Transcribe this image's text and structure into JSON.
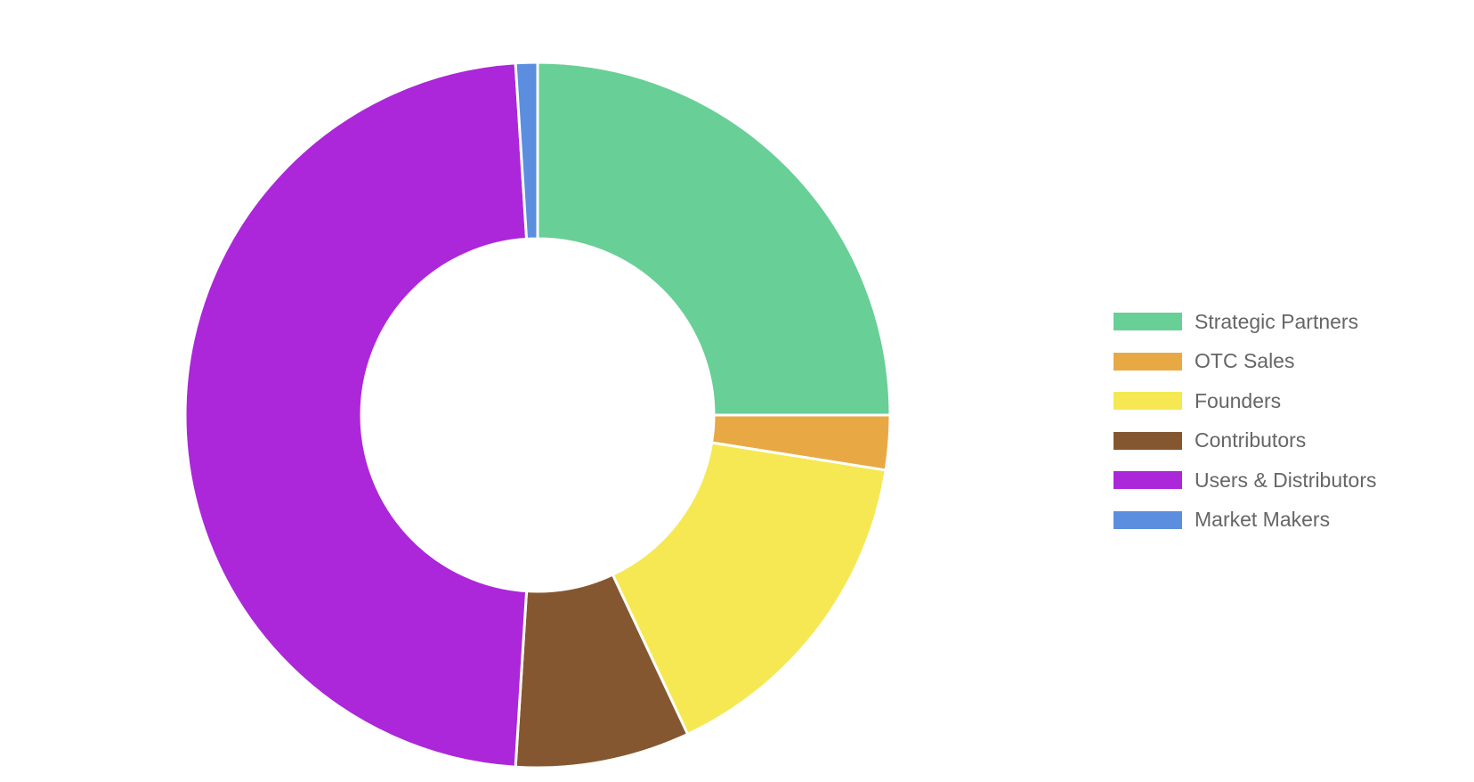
{
  "chart_data": {
    "type": "pie",
    "variant": "doughnut",
    "title": "",
    "categories": [
      "Strategic Partners",
      "OTC Sales",
      "Founders",
      "Contributors",
      "Users & Distributors",
      "Market Makers"
    ],
    "values": [
      25,
      2.5,
      15.5,
      8,
      48,
      1
    ],
    "colors": [
      "#68CF96",
      "#E8A945",
      "#F5E853",
      "#855730",
      "#AB27D9",
      "#5B8EDE"
    ],
    "legend_position": "right"
  }
}
